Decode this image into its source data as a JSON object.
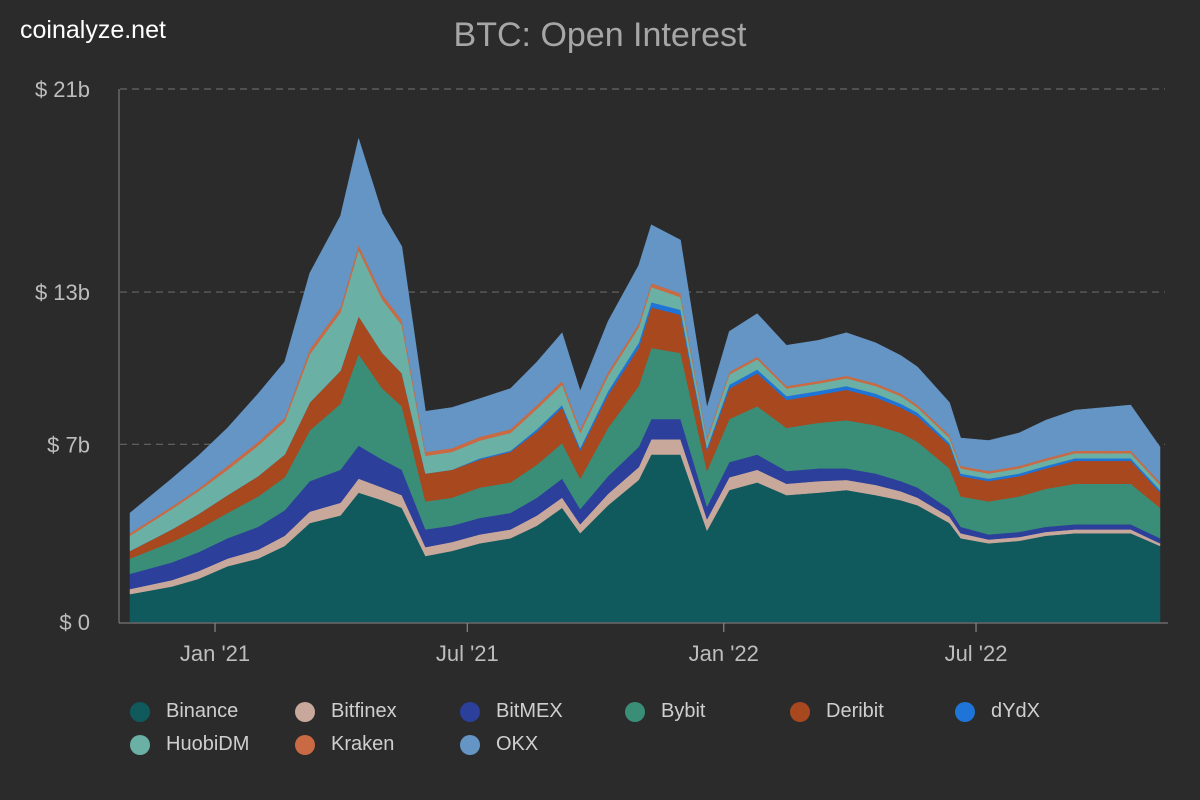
{
  "watermark": "coinalyze.net",
  "chart_data": {
    "type": "area",
    "stacked": true,
    "title": "BTC: Open Interest",
    "xlabel": "",
    "ylabel": "",
    "y_ticks": [
      {
        "value": 0,
        "label": "$ 0"
      },
      {
        "value": 7,
        "label": "$ 7b"
      },
      {
        "value": 13,
        "label": "$ 13b"
      },
      {
        "value": 21,
        "label": "$ 21b"
      }
    ],
    "ylim": [
      0,
      21
    ],
    "y_unit": "billion USD",
    "x_ticks": [
      {
        "value": "2021-01-01",
        "label": "Jan '21"
      },
      {
        "value": "2021-07-01",
        "label": "Jul '21"
      },
      {
        "value": "2022-01-01",
        "label": "Jan '22"
      },
      {
        "value": "2022-07-01",
        "label": "Jul '22"
      }
    ],
    "xlim": [
      "2020-11-01",
      "2022-11-10"
    ],
    "grid": "horizontal dashed",
    "legend_position": "bottom",
    "x": [
      "2020-11-01",
      "2020-12-01",
      "2020-12-20",
      "2021-01-10",
      "2021-02-01",
      "2021-02-20",
      "2021-03-10",
      "2021-04-01",
      "2021-04-14",
      "2021-05-01",
      "2021-05-15",
      "2021-06-01",
      "2021-06-20",
      "2021-07-10",
      "2021-08-01",
      "2021-08-20",
      "2021-09-07",
      "2021-09-20",
      "2021-10-10",
      "2021-11-01",
      "2021-11-10",
      "2021-12-01",
      "2021-12-20",
      "2022-01-05",
      "2022-01-25",
      "2022-02-15",
      "2022-03-10",
      "2022-03-30",
      "2022-04-20",
      "2022-05-08",
      "2022-05-20",
      "2022-06-12",
      "2022-06-20",
      "2022-07-10",
      "2022-08-01",
      "2022-08-20",
      "2022-09-10",
      "2022-10-01",
      "2022-10-20",
      "2022-11-10"
    ],
    "series": [
      {
        "name": "Binance",
        "color": "#10595c",
        "values": [
          1.1,
          1.4,
          1.7,
          2.2,
          2.5,
          3.0,
          3.9,
          4.2,
          5.1,
          4.8,
          4.5,
          2.6,
          2.8,
          3.1,
          3.3,
          3.8,
          4.5,
          3.5,
          4.6,
          5.6,
          6.6,
          6.6,
          3.6,
          5.2,
          5.5,
          5.0,
          5.1,
          5.2,
          5.0,
          4.8,
          4.6,
          3.9,
          3.3,
          3.1,
          3.2,
          3.4,
          3.5,
          3.5,
          3.5,
          3.0
        ]
      },
      {
        "name": "Bitfinex",
        "color": "#c9a89c",
        "values": [
          0.2,
          0.25,
          0.3,
          0.3,
          0.35,
          0.4,
          0.45,
          0.5,
          0.55,
          0.5,
          0.5,
          0.35,
          0.35,
          0.35,
          0.35,
          0.4,
          0.4,
          0.35,
          0.45,
          0.5,
          0.6,
          0.6,
          0.45,
          0.5,
          0.5,
          0.45,
          0.45,
          0.4,
          0.4,
          0.35,
          0.3,
          0.25,
          0.2,
          0.15,
          0.15,
          0.15,
          0.15,
          0.15,
          0.15,
          0.1
        ]
      },
      {
        "name": "BitMEX",
        "color": "#2b3f9b",
        "values": [
          0.6,
          0.7,
          0.75,
          0.8,
          0.9,
          1.0,
          1.2,
          1.3,
          1.3,
          1.1,
          1.0,
          0.7,
          0.65,
          0.65,
          0.65,
          0.7,
          0.75,
          0.6,
          0.7,
          0.8,
          0.8,
          0.8,
          0.5,
          0.6,
          0.6,
          0.5,
          0.5,
          0.45,
          0.45,
          0.4,
          0.4,
          0.3,
          0.25,
          0.2,
          0.2,
          0.2,
          0.2,
          0.2,
          0.2,
          0.2
        ]
      },
      {
        "name": "Bybit",
        "color": "#3a8e78",
        "values": [
          0.6,
          0.8,
          0.9,
          1.0,
          1.2,
          1.3,
          2.0,
          2.6,
          3.6,
          2.8,
          2.5,
          1.1,
          1.1,
          1.2,
          1.2,
          1.3,
          1.4,
          1.2,
          1.9,
          2.4,
          2.8,
          2.6,
          1.4,
          1.7,
          1.9,
          1.7,
          1.8,
          1.9,
          1.9,
          1.9,
          1.8,
          1.6,
          1.2,
          1.3,
          1.4,
          1.5,
          1.6,
          1.6,
          1.6,
          1.2
        ]
      },
      {
        "name": "Deribit",
        "color": "#a8481f",
        "values": [
          0.3,
          0.5,
          0.6,
          0.7,
          0.8,
          0.9,
          1.1,
          1.3,
          1.5,
          1.4,
          1.3,
          1.1,
          1.1,
          1.1,
          1.2,
          1.3,
          1.4,
          1.1,
          1.3,
          1.5,
          1.6,
          1.5,
          0.8,
          1.2,
          1.3,
          1.1,
          1.1,
          1.2,
          1.1,
          1.0,
          1.0,
          0.9,
          0.8,
          0.8,
          0.8,
          0.8,
          0.9,
          0.9,
          0.9,
          0.6
        ]
      },
      {
        "name": "dYdX",
        "color": "#1f74d8",
        "values": [
          0.0,
          0.0,
          0.0,
          0.0,
          0.0,
          0.0,
          0.0,
          0.0,
          0.0,
          0.0,
          0.0,
          0.0,
          0.0,
          0.05,
          0.05,
          0.1,
          0.1,
          0.1,
          0.15,
          0.2,
          0.2,
          0.2,
          0.1,
          0.15,
          0.15,
          0.15,
          0.15,
          0.15,
          0.15,
          0.15,
          0.15,
          0.1,
          0.1,
          0.1,
          0.1,
          0.1,
          0.1,
          0.1,
          0.1,
          0.1
        ]
      },
      {
        "name": "HuobiDM",
        "color": "#6bb0a5",
        "values": [
          0.6,
          0.8,
          0.9,
          1.0,
          1.2,
          1.3,
          1.9,
          2.3,
          2.6,
          2.1,
          1.9,
          0.7,
          0.7,
          0.7,
          0.7,
          0.8,
          0.8,
          0.6,
          0.6,
          0.6,
          0.6,
          0.5,
          0.3,
          0.4,
          0.4,
          0.3,
          0.3,
          0.3,
          0.3,
          0.3,
          0.2,
          0.2,
          0.2,
          0.2,
          0.2,
          0.2,
          0.2,
          0.2,
          0.2,
          0.2
        ]
      },
      {
        "name": "Kraken",
        "color": "#c96a44",
        "values": [
          0.1,
          0.1,
          0.1,
          0.15,
          0.15,
          0.15,
          0.2,
          0.2,
          0.2,
          0.2,
          0.2,
          0.15,
          0.15,
          0.15,
          0.15,
          0.15,
          0.15,
          0.15,
          0.15,
          0.15,
          0.15,
          0.15,
          0.1,
          0.1,
          0.1,
          0.1,
          0.1,
          0.1,
          0.1,
          0.1,
          0.1,
          0.1,
          0.1,
          0.1,
          0.1,
          0.1,
          0.1,
          0.1,
          0.1,
          0.1
        ]
      },
      {
        "name": "OKX",
        "color": "#6495c4",
        "values": [
          0.8,
          1.1,
          1.3,
          1.5,
          1.9,
          2.2,
          3.0,
          3.6,
          4.2,
          3.2,
          2.9,
          1.6,
          1.6,
          1.5,
          1.6,
          1.7,
          1.9,
          1.5,
          2.0,
          2.3,
          2.3,
          2.1,
          1.2,
          1.6,
          1.7,
          1.6,
          1.6,
          1.7,
          1.6,
          1.5,
          1.5,
          1.3,
          1.1,
          1.2,
          1.3,
          1.5,
          1.6,
          1.7,
          1.8,
          1.4
        ]
      }
    ]
  }
}
